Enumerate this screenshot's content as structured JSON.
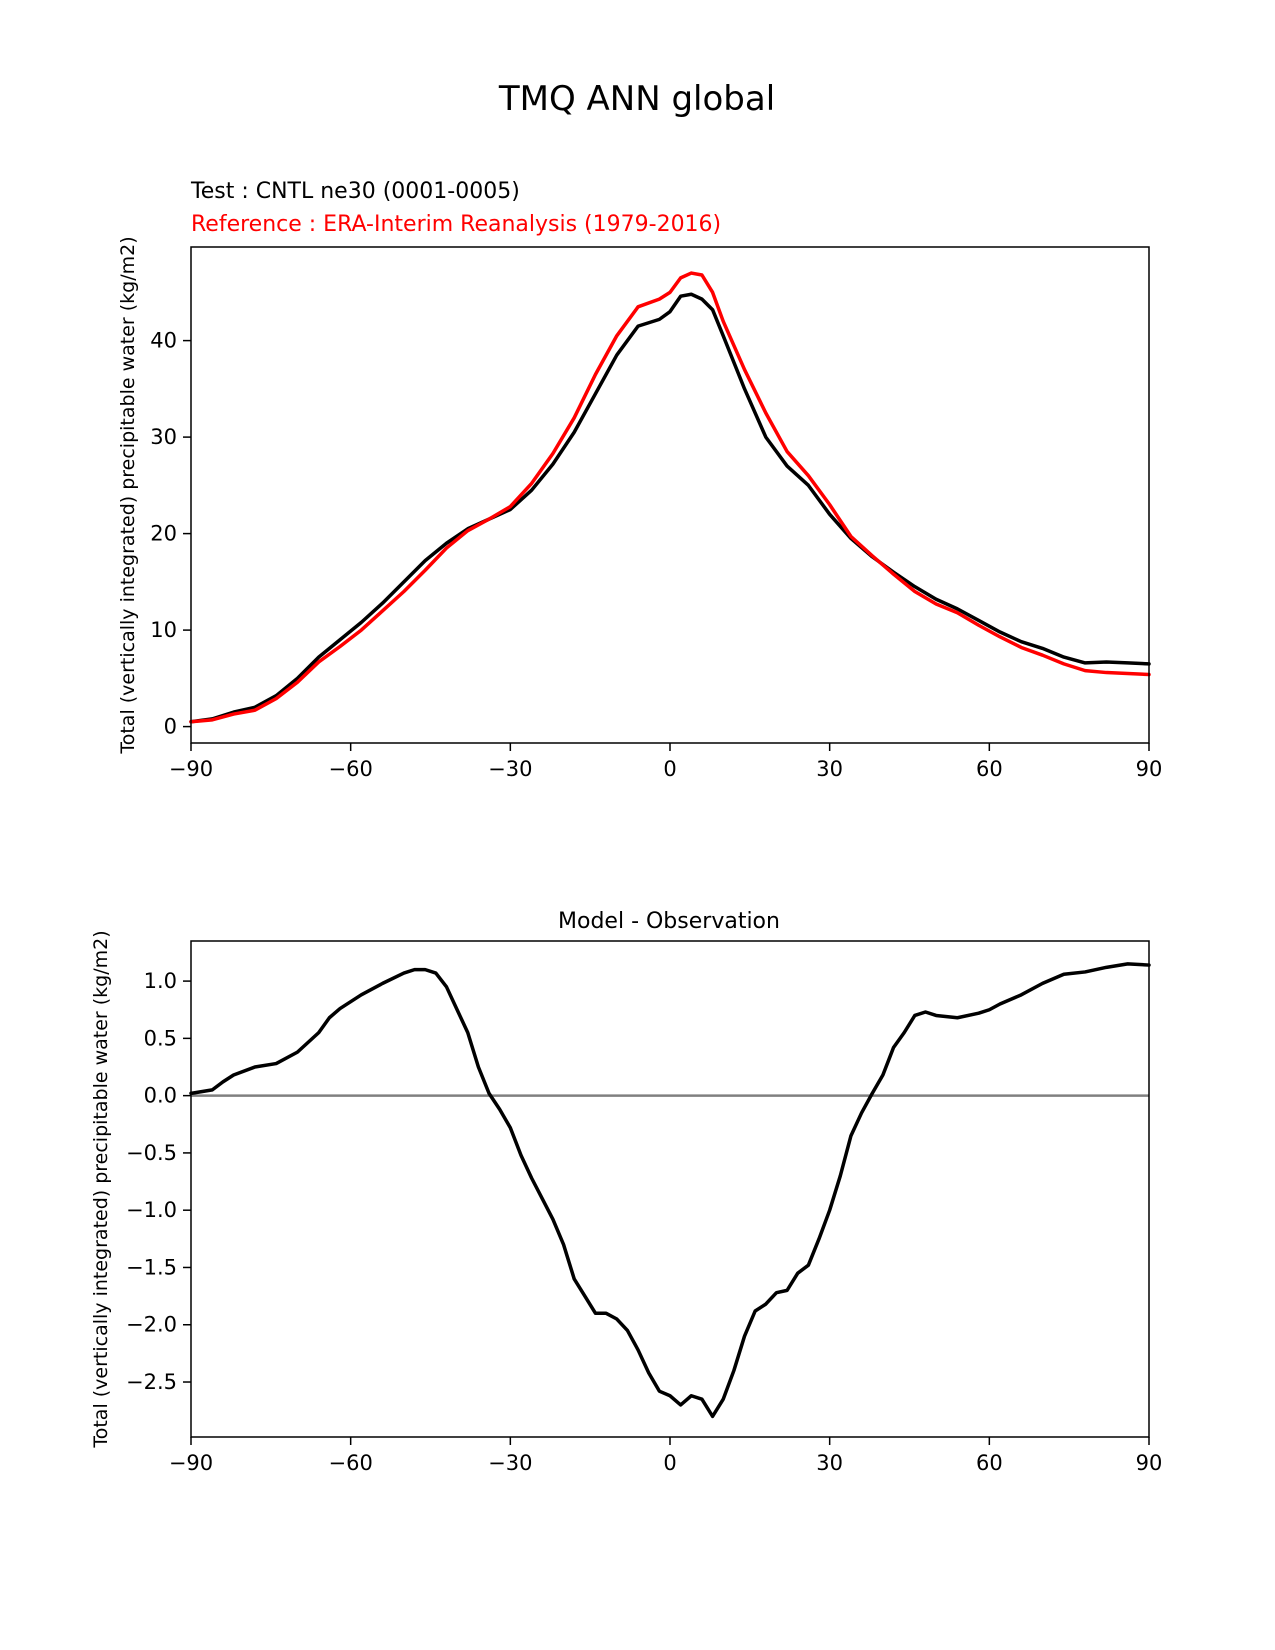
{
  "figure_title": "TMQ ANN global",
  "colors": {
    "test": "#000000",
    "reference": "#ff0000",
    "diff": "#000000",
    "zero_line": "#808080"
  },
  "chart_data": [
    {
      "type": "line",
      "test_label": "Test : CNTL ne30 (0001-0005)",
      "reference_label": "Reference : ERA-Interim Reanalysis (1979-2016)",
      "xlabel": "",
      "ylabel": "Total (vertically integrated) precipitable water (kg/m2)",
      "xlim": [
        -90,
        90
      ],
      "ylim": [
        -1.7,
        49.7
      ],
      "xticks": [
        -90,
        -60,
        -30,
        0,
        30,
        60,
        90
      ],
      "xtick_labels": [
        "−90",
        "−60",
        "−30",
        "0",
        "30",
        "60",
        "90"
      ],
      "yticks": [
        0,
        10,
        20,
        30,
        40
      ],
      "ytick_labels": [
        "0",
        "10",
        "20",
        "30",
        "40"
      ],
      "series": [
        {
          "name": "Test : CNTL ne30 (0001-0005)",
          "color_key": "test",
          "x": [
            -90,
            -86,
            -82,
            -78,
            -74,
            -70,
            -66,
            -62,
            -58,
            -54,
            -50,
            -46,
            -42,
            -38,
            -34,
            -30,
            -26,
            -22,
            -18,
            -14,
            -10,
            -6,
            -2,
            0,
            2,
            4,
            6,
            8,
            10,
            14,
            18,
            22,
            26,
            30,
            34,
            38,
            42,
            46,
            50,
            54,
            58,
            62,
            66,
            70,
            74,
            78,
            82,
            86,
            90
          ],
          "y": [
            0.5,
            0.8,
            1.5,
            2.0,
            3.2,
            5.0,
            7.2,
            9.0,
            10.8,
            12.8,
            15.0,
            17.2,
            19.0,
            20.5,
            21.5,
            22.5,
            24.5,
            27.2,
            30.5,
            34.5,
            38.5,
            41.5,
            42.2,
            43.0,
            44.6,
            44.8,
            44.3,
            43.2,
            40.5,
            35.0,
            30.0,
            27.0,
            25.0,
            22.0,
            19.5,
            17.6,
            16.0,
            14.5,
            13.2,
            12.2,
            11.0,
            9.8,
            8.8,
            8.1,
            7.2,
            6.6,
            6.7,
            6.6,
            6.5
          ]
        },
        {
          "name": "Reference : ERA-Interim Reanalysis (1979-2016)",
          "color_key": "reference",
          "x": [
            -90,
            -86,
            -82,
            -78,
            -74,
            -70,
            -66,
            -62,
            -58,
            -54,
            -50,
            -46,
            -42,
            -38,
            -34,
            -30,
            -26,
            -22,
            -18,
            -14,
            -10,
            -6,
            -2,
            0,
            2,
            4,
            6,
            8,
            10,
            14,
            18,
            22,
            26,
            30,
            34,
            38,
            42,
            46,
            50,
            54,
            58,
            62,
            66,
            70,
            74,
            78,
            82,
            86,
            90
          ],
          "y": [
            0.5,
            0.7,
            1.3,
            1.7,
            2.9,
            4.6,
            6.7,
            8.3,
            10.0,
            12.0,
            14.0,
            16.2,
            18.5,
            20.3,
            21.5,
            22.8,
            25.2,
            28.3,
            32.0,
            36.5,
            40.5,
            43.5,
            44.3,
            45.0,
            46.5,
            47.0,
            46.8,
            45.0,
            42.0,
            37.0,
            32.5,
            28.5,
            26.0,
            23.0,
            19.7,
            17.7,
            15.8,
            14.0,
            12.7,
            11.8,
            10.5,
            9.3,
            8.2,
            7.4,
            6.5,
            5.8,
            5.6,
            5.5,
            5.4
          ]
        }
      ]
    },
    {
      "type": "line",
      "title": "Model - Observation",
      "xlabel": "",
      "ylabel": "Total (vertically integrated) precipitable water (kg/m2)",
      "xlim": [
        -90,
        90
      ],
      "ylim": [
        -2.98,
        1.35
      ],
      "xticks": [
        -90,
        -60,
        -30,
        0,
        30,
        60,
        90
      ],
      "xtick_labels": [
        "−90",
        "−60",
        "−30",
        "0",
        "30",
        "60",
        "90"
      ],
      "yticks": [
        1.0,
        0.5,
        0.0,
        -0.5,
        -1.0,
        -1.5,
        -2.0,
        -2.5
      ],
      "ytick_labels": [
        "1.0",
        "0.5",
        "0.0",
        "−0.5",
        "−1.0",
        "−1.5",
        "−2.0",
        "−2.5"
      ],
      "zero_line": 0,
      "series": [
        {
          "name": "Model - Observation",
          "color_key": "diff",
          "x": [
            -90,
            -86,
            -84,
            -82,
            -78,
            -74,
            -70,
            -66,
            -64,
            -62,
            -58,
            -54,
            -50,
            -48,
            -46,
            -44,
            -42,
            -40,
            -38,
            -36,
            -34,
            -32,
            -30,
            -28,
            -26,
            -24,
            -22,
            -20,
            -18,
            -16,
            -14,
            -12,
            -10,
            -8,
            -6,
            -4,
            -2,
            0,
            2,
            4,
            6,
            8,
            10,
            12,
            14,
            16,
            18,
            20,
            22,
            24,
            26,
            28,
            30,
            32,
            34,
            36,
            38,
            40,
            42,
            44,
            46,
            48,
            50,
            54,
            58,
            60,
            62,
            66,
            70,
            74,
            78,
            82,
            86,
            90
          ],
          "y": [
            0.02,
            0.05,
            0.12,
            0.18,
            0.25,
            0.28,
            0.38,
            0.55,
            0.68,
            0.76,
            0.88,
            0.98,
            1.07,
            1.1,
            1.1,
            1.07,
            0.95,
            0.75,
            0.55,
            0.25,
            0.02,
            -0.12,
            -0.28,
            -0.52,
            -0.72,
            -0.9,
            -1.08,
            -1.3,
            -1.6,
            -1.75,
            -1.9,
            -1.9,
            -1.95,
            -2.05,
            -2.22,
            -2.42,
            -2.58,
            -2.62,
            -2.7,
            -2.62,
            -2.65,
            -2.8,
            -2.65,
            -2.4,
            -2.1,
            -1.88,
            -1.82,
            -1.72,
            -1.7,
            -1.55,
            -1.48,
            -1.25,
            -1.0,
            -0.7,
            -0.35,
            -0.15,
            0.02,
            0.18,
            0.42,
            0.55,
            0.7,
            0.73,
            0.7,
            0.68,
            0.72,
            0.75,
            0.8,
            0.88,
            0.98,
            1.06,
            1.08,
            1.12,
            1.15,
            1.14
          ]
        }
      ]
    }
  ]
}
